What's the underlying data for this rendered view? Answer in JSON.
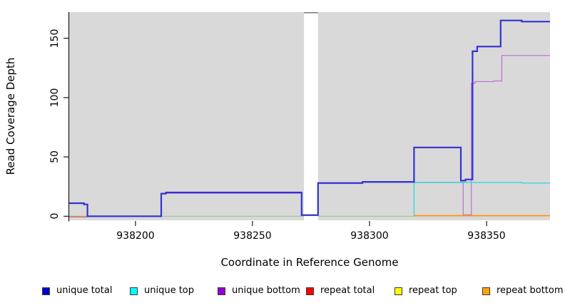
{
  "figure": {
    "xlabel": "Coordinate in Reference Genome",
    "ylabel": "Read Coverage Depth"
  },
  "legend": {
    "items": [
      {
        "label": "unique total",
        "swatch_color": "#0000CC"
      },
      {
        "label": "unique top",
        "swatch_color": "#00FFFF"
      },
      {
        "label": "unique bottom",
        "swatch_color": "#9400D3"
      },
      {
        "label": "repeat total",
        "swatch_color": "#FF0000"
      },
      {
        "label": "repeat top",
        "swatch_color": "#FFFF00"
      },
      {
        "label": "repeat bottom",
        "swatch_color": "#FFA500"
      }
    ]
  },
  "chart_data": {
    "type": "line",
    "step": true,
    "title": "",
    "xlabel": "Coordinate in Reference Genome",
    "ylabel": "Read Coverage Depth",
    "xlim": [
      938171.7,
      938377.1
    ],
    "ylim": [
      -3.4,
      172
    ],
    "x_ticks": [
      938200,
      938250,
      938300,
      938350
    ],
    "x_tick_labels": [
      "938200",
      "938250",
      "938300",
      "938350"
    ],
    "y_ticks": [
      0,
      50,
      100,
      150
    ],
    "y_tick_labels": [
      "0",
      "50",
      "100",
      "150"
    ],
    "grid": false,
    "legend_position": "bottom",
    "plot_bg": "#D9D9D9",
    "axis_color": "#1a1a1a",
    "gap_region": {
      "from": 938272,
      "to": 938278,
      "color": "#FFFFFF",
      "top_border": "#7F7F7F"
    },
    "series": [
      {
        "name": "baseline-green",
        "color": "#8FCE8F",
        "width": 1.2,
        "under_gap": true,
        "points": [
          [
            938171.7,
            0
          ],
          [
            938319,
            0
          ]
        ]
      },
      {
        "name": "repeat-total",
        "color": "#E96060",
        "width": 1.4,
        "under_gap": true,
        "points": [
          [
            938171.7,
            -0.5
          ],
          [
            938179.5,
            -0.5
          ]
        ]
      },
      {
        "name": "unique-bottom",
        "color": "#BB7FD6",
        "width": 1.4,
        "under_gap": false,
        "points": [
          [
            938179.5,
            0
          ],
          [
            938211,
            0
          ],
          [
            938211,
            19.4
          ],
          [
            938271,
            19.4
          ],
          [
            938271,
            0.6
          ],
          [
            938278,
            0.6
          ],
          [
            938278,
            27.6
          ],
          [
            938297,
            27.6
          ],
          [
            938297,
            28.6
          ],
          [
            938340,
            28.6
          ],
          [
            938340,
            1.2
          ],
          [
            938343.5,
            1.2
          ],
          [
            938343.5,
            112
          ],
          [
            938345,
            112
          ],
          [
            938345,
            113.5
          ],
          [
            938353,
            113.5
          ],
          [
            938353,
            114
          ],
          [
            938356.5,
            114
          ],
          [
            938356.5,
            135.5
          ],
          [
            938377.1,
            135.5
          ]
        ]
      },
      {
        "name": "unique-top",
        "color": "#33DBDB",
        "width": 1.4,
        "under_gap": false,
        "points": [
          [
            938319,
            0
          ],
          [
            938319,
            28.5
          ],
          [
            938365,
            28.5
          ],
          [
            938365,
            28
          ],
          [
            938377.1,
            28
          ]
        ]
      },
      {
        "name": "unique-total",
        "color": "#3232D2",
        "width": 2.2,
        "under_gap": false,
        "points": [
          [
            938171.7,
            11
          ],
          [
            938178,
            11
          ],
          [
            938178,
            10
          ],
          [
            938179.5,
            10
          ],
          [
            938179.5,
            0
          ],
          [
            938211,
            0
          ],
          [
            938211,
            19
          ],
          [
            938213,
            19
          ],
          [
            938213,
            20
          ],
          [
            938271,
            20
          ],
          [
            938271,
            1
          ],
          [
            938278,
            1
          ],
          [
            938278,
            28
          ],
          [
            938297,
            28
          ],
          [
            938297,
            29
          ],
          [
            938319,
            29
          ],
          [
            938319,
            58
          ],
          [
            938339,
            58
          ],
          [
            938339,
            30
          ],
          [
            938341,
            30
          ],
          [
            938341,
            31
          ],
          [
            938344,
            31
          ],
          [
            938344,
            139
          ],
          [
            938346,
            139
          ],
          [
            938346,
            143
          ],
          [
            938356,
            143
          ],
          [
            938356,
            165
          ],
          [
            938365,
            165
          ],
          [
            938365,
            164
          ],
          [
            938377.1,
            164
          ]
        ]
      },
      {
        "name": "repeat-bottom",
        "color": "#FF950C",
        "width": 1.8,
        "under_gap": false,
        "points": [
          [
            938319,
            0.5
          ],
          [
            938377.1,
            0.5
          ]
        ]
      }
    ]
  }
}
